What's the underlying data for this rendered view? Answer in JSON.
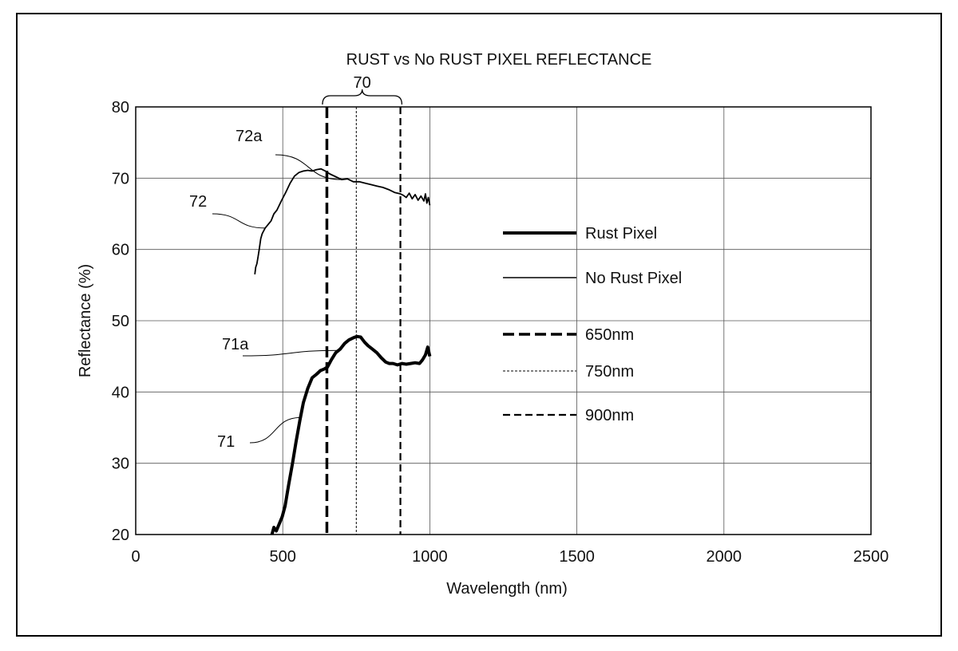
{
  "chart_data": {
    "type": "line",
    "title": "RUST vs No RUST PIXEL REFLECTANCE",
    "xlabel": "Wavelength (nm)",
    "ylabel": "Reflectance (%)",
    "xlim": [
      0,
      2500
    ],
    "ylim": [
      20,
      80
    ],
    "x_ticks": [
      0,
      500,
      1000,
      1500,
      2000,
      2500
    ],
    "y_ticks": [
      20,
      30,
      40,
      50,
      60,
      70,
      80
    ],
    "grid": true,
    "legend_position": "right-center",
    "series": [
      {
        "name": "Rust Pixel",
        "style": "thick-solid",
        "x": [
          463,
          470,
          478,
          488,
          498,
          508,
          520,
          533,
          545,
          558,
          570,
          585,
          600,
          615,
          628,
          640,
          652,
          665,
          680,
          695,
          710,
          725,
          740,
          752,
          765,
          778,
          790,
          805,
          820,
          835,
          850,
          862,
          875,
          890,
          905,
          920,
          935,
          950,
          965,
          975,
          985,
          993,
          1000
        ],
        "y": [
          20.0,
          21.0,
          20.5,
          21.5,
          22.5,
          24.0,
          27.0,
          30.0,
          33.0,
          36.0,
          38.5,
          40.5,
          42.0,
          42.5,
          43.0,
          43.2,
          43.5,
          44.5,
          45.5,
          46.0,
          46.8,
          47.3,
          47.6,
          47.8,
          47.7,
          47.0,
          46.5,
          46.0,
          45.5,
          44.8,
          44.2,
          44.0,
          44.0,
          43.8,
          44.0,
          43.9,
          44.0,
          44.1,
          44.0,
          44.5,
          45.2,
          46.3,
          45.0
        ]
      },
      {
        "name": "No Rust Pixel",
        "style": "thin-solid",
        "x": [
          405,
          408,
          412,
          416,
          420,
          425,
          430,
          440,
          450,
          460,
          470,
          480,
          495,
          510,
          525,
          540,
          555,
          570,
          585,
          600,
          615,
          630,
          645,
          660,
          680,
          700,
          720,
          740,
          760,
          780,
          800,
          820,
          840,
          860,
          880,
          900,
          910,
          920,
          930,
          940,
          950,
          960,
          970,
          980,
          985,
          990,
          995,
          1000
        ],
        "y": [
          56.5,
          57.5,
          58.0,
          59.0,
          60.0,
          61.5,
          62.2,
          63.0,
          63.5,
          64.0,
          65.0,
          65.5,
          66.8,
          68.0,
          69.3,
          70.3,
          70.8,
          71.0,
          71.1,
          71.0,
          71.2,
          71.3,
          71.0,
          70.6,
          70.2,
          69.8,
          69.9,
          69.5,
          69.5,
          69.3,
          69.1,
          68.9,
          68.7,
          68.4,
          68.0,
          67.8,
          67.6,
          67.3,
          67.9,
          67.1,
          67.7,
          66.9,
          67.5,
          66.8,
          67.8,
          66.5,
          67.3,
          66.2
        ]
      }
    ],
    "reference_lines": [
      {
        "name": "650nm",
        "x": 650,
        "style": "thick-dashed"
      },
      {
        "name": "750nm",
        "x": 750,
        "style": "thin-dotted"
      },
      {
        "name": "900nm",
        "x": 900,
        "style": "medium-dashed"
      }
    ],
    "annotations": [
      {
        "text": "70",
        "type": "bracket",
        "x_range": [
          635,
          905
        ]
      },
      {
        "text": "72a",
        "target_series": "No Rust Pixel",
        "target_x": 700
      },
      {
        "text": "72",
        "target_series": "No Rust Pixel",
        "target_x": 440
      },
      {
        "text": "71a",
        "target_series": "Rust Pixel",
        "target_x": 690
      },
      {
        "text": "71",
        "target_series": "Rust Pixel",
        "target_x": 560
      }
    ]
  }
}
